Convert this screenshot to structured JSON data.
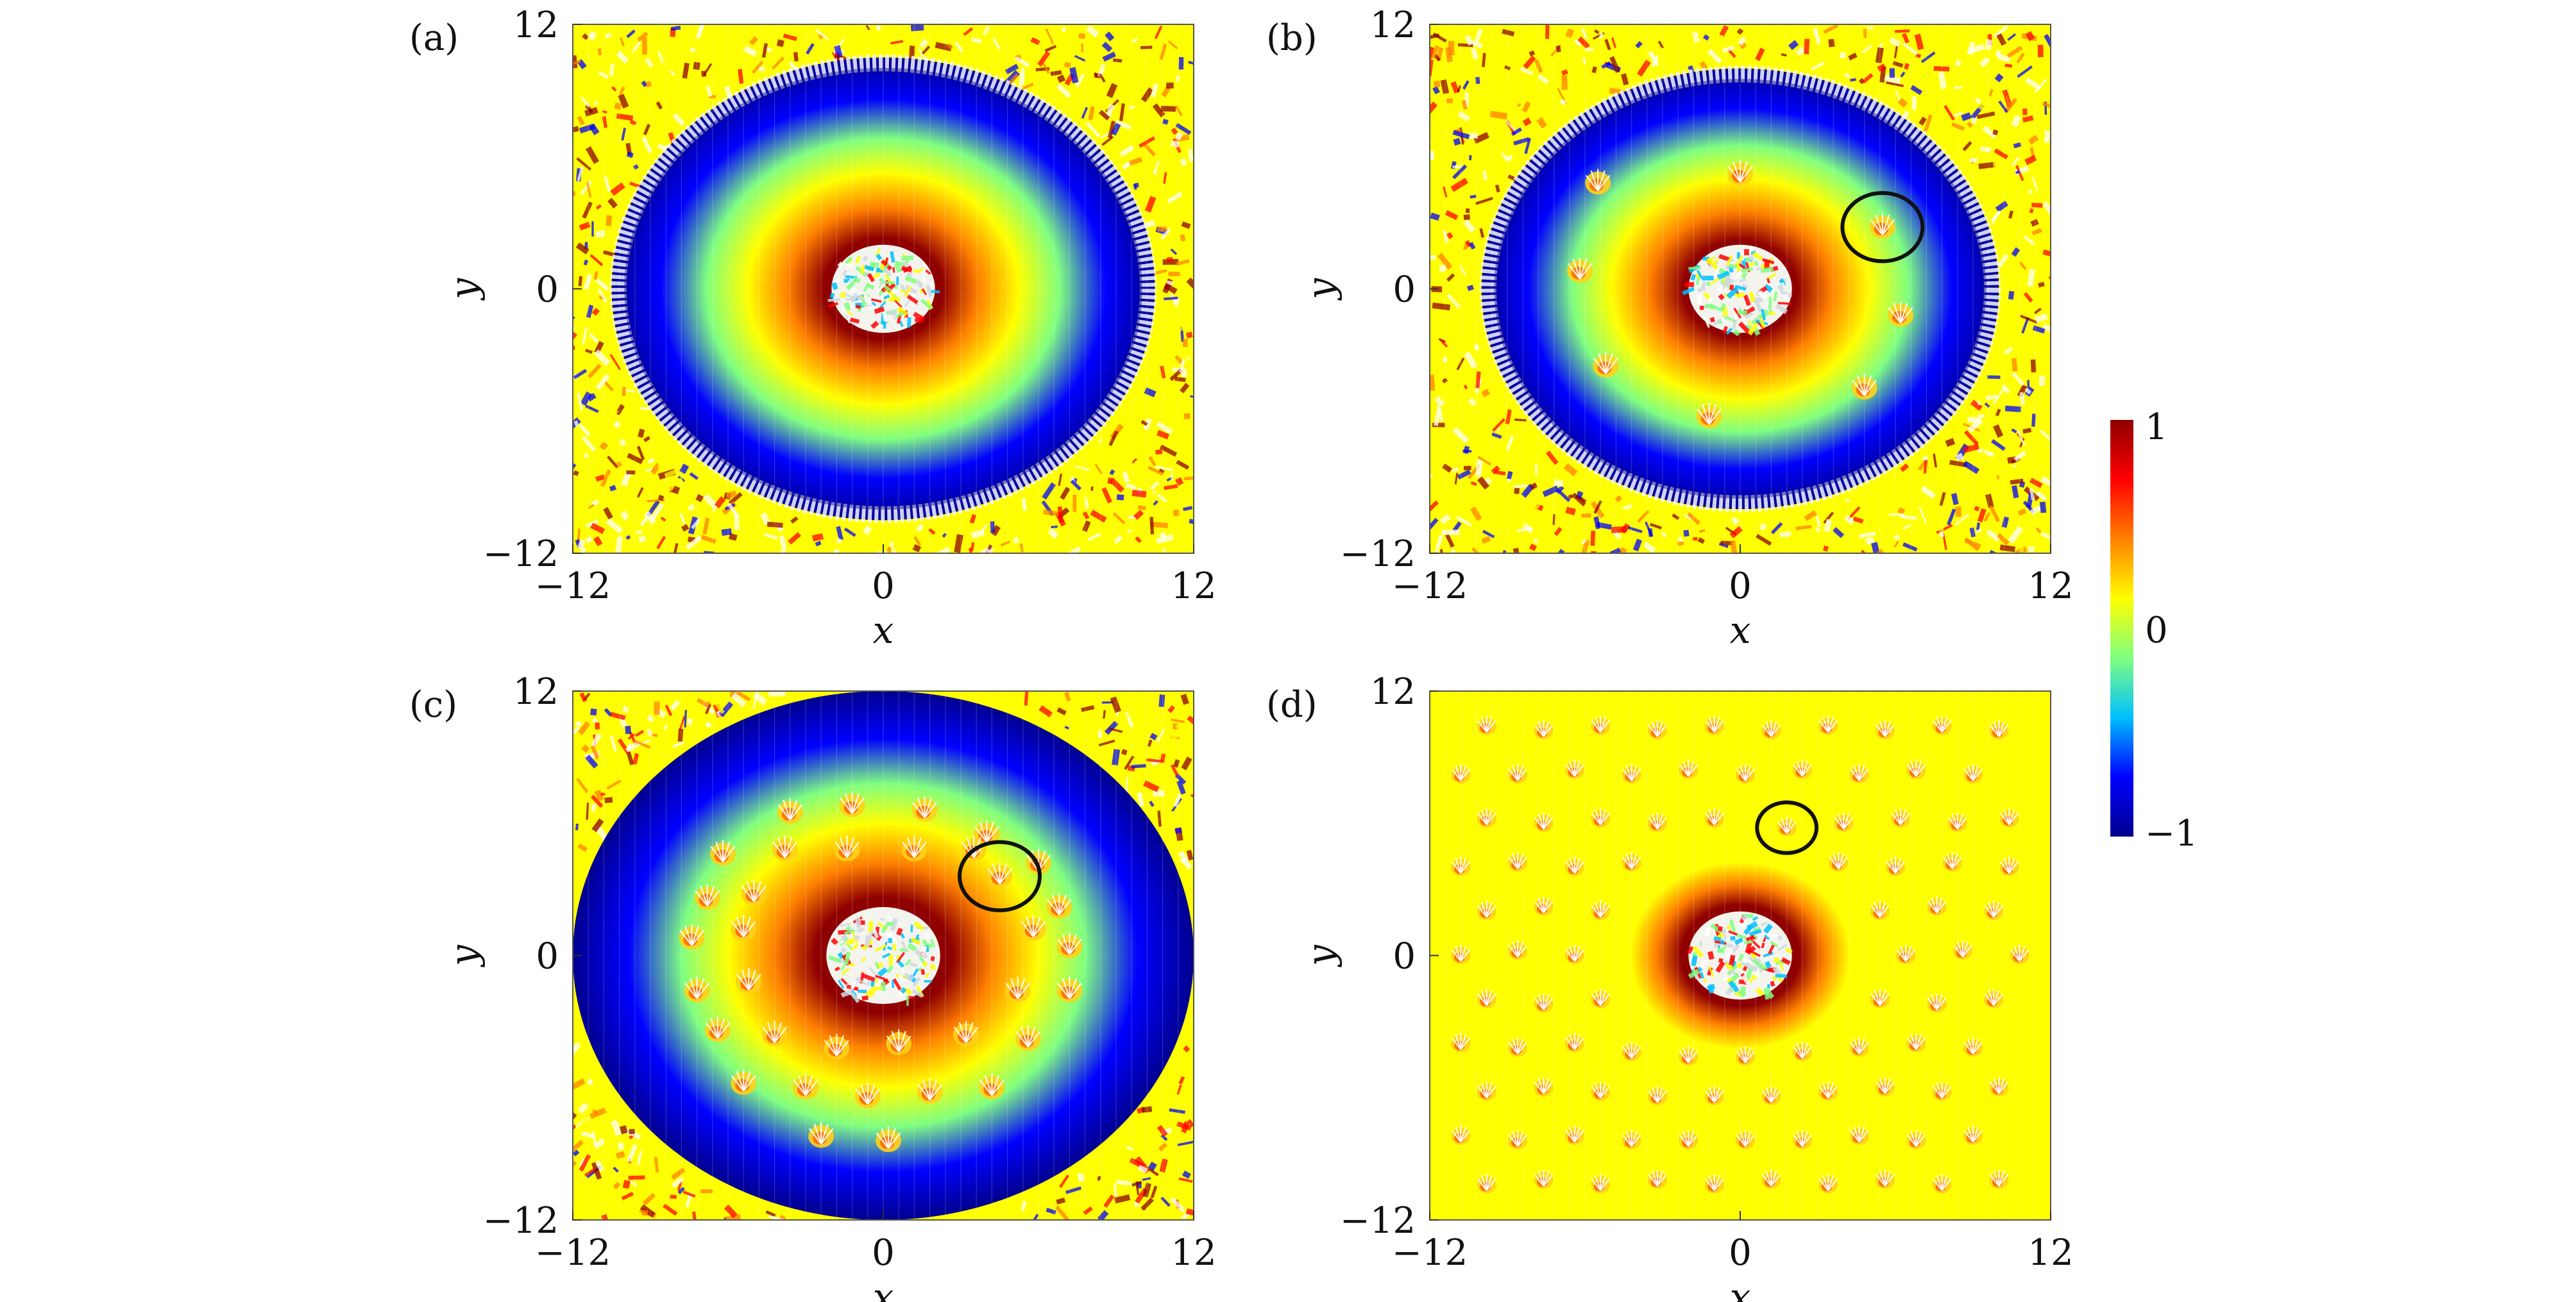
{
  "figure": {
    "colormap": [
      "#00008f",
      "#0000ff",
      "#00bfff",
      "#80ff80",
      "#ffff00",
      "#ff8000",
      "#ff0000",
      "#8f0000"
    ],
    "colorbar": {
      "min": -1,
      "max": 1,
      "tick_labels": [
        "1",
        "0",
        "−1"
      ]
    },
    "panels": [
      {
        "label": "(a)",
        "xlabel": "x",
        "ylabel": "y",
        "xlim": [
          -12,
          12
        ],
        "ylim": [
          -12,
          12
        ],
        "x_tick_labels": [
          "−12",
          "0",
          "12"
        ],
        "y_tick_labels": [
          "12",
          "0",
          "−12"
        ],
        "ring_radius": 10.5,
        "core_radius": 2.0,
        "center_value": 0.9,
        "edge_value": -1.0,
        "outside_value": 0.0,
        "circled_spot": null,
        "spots": []
      },
      {
        "label": "(b)",
        "xlabel": "x",
        "ylabel": "y",
        "xlim": [
          -12,
          12
        ],
        "ylim": [
          -12,
          12
        ],
        "x_tick_labels": [
          "−12",
          "0",
          "12"
        ],
        "y_tick_labels": [
          "12",
          "0",
          "−12"
        ],
        "ring_radius": 10.0,
        "core_radius": 2.0,
        "center_value": 0.9,
        "edge_value": -1.0,
        "outside_value": 0.0,
        "circled_spot": {
          "x": 5.5,
          "y": 2.8
        },
        "spots": [
          {
            "x": -5.5,
            "y": 4.8
          },
          {
            "x": 0,
            "y": 5.2
          },
          {
            "x": 5.5,
            "y": 2.8
          },
          {
            "x": -6.2,
            "y": 0.8
          },
          {
            "x": 6.2,
            "y": -1.2
          },
          {
            "x": -5.2,
            "y": -3.5
          },
          {
            "x": 4.8,
            "y": -4.5
          },
          {
            "x": -1.2,
            "y": -5.8
          }
        ]
      },
      {
        "label": "(c)",
        "xlabel": "x",
        "ylabel": "y",
        "xlim": [
          -12,
          12
        ],
        "ylim": [
          -12,
          12
        ],
        "x_tick_labels": [
          "−12",
          "0",
          "12"
        ],
        "y_tick_labels": [
          "12",
          "0",
          "−12"
        ],
        "ring_radius": 12.0,
        "core_radius": 2.2,
        "center_value": 0.9,
        "edge_value": -1.0,
        "outside_value": 0.0,
        "circled_spot": {
          "x": 4.5,
          "y": 3.6
        },
        "spots": [
          {
            "x": -3.6,
            "y": 6.5
          },
          {
            "x": -1.2,
            "y": 6.8
          },
          {
            "x": 1.6,
            "y": 6.6
          },
          {
            "x": 4.0,
            "y": 5.5
          },
          {
            "x": -6.2,
            "y": 4.6
          },
          {
            "x": -3.8,
            "y": 4.8
          },
          {
            "x": -1.4,
            "y": 4.8
          },
          {
            "x": 1.2,
            "y": 4.8
          },
          {
            "x": 3.5,
            "y": 4.8
          },
          {
            "x": 6.0,
            "y": 4.2
          },
          {
            "x": -6.8,
            "y": 2.6
          },
          {
            "x": -5.0,
            "y": 2.8
          },
          {
            "x": 4.5,
            "y": 3.6
          },
          {
            "x": 6.8,
            "y": 2.2
          },
          {
            "x": -7.4,
            "y": 0.8
          },
          {
            "x": -5.4,
            "y": 1.2
          },
          {
            "x": 5.8,
            "y": 1.2
          },
          {
            "x": 7.2,
            "y": 0.4
          },
          {
            "x": -7.2,
            "y": -1.6
          },
          {
            "x": -5.2,
            "y": -1.2
          },
          {
            "x": 5.2,
            "y": -1.6
          },
          {
            "x": 7.2,
            "y": -1.6
          },
          {
            "x": -6.4,
            "y": -3.4
          },
          {
            "x": -4.2,
            "y": -3.6
          },
          {
            "x": -1.8,
            "y": -4.2
          },
          {
            "x": 0.6,
            "y": -4.0
          },
          {
            "x": 3.2,
            "y": -3.6
          },
          {
            "x": 5.6,
            "y": -3.8
          },
          {
            "x": -5.4,
            "y": -5.8
          },
          {
            "x": -3.0,
            "y": -6.0
          },
          {
            "x": -0.6,
            "y": -6.4
          },
          {
            "x": 1.8,
            "y": -6.2
          },
          {
            "x": 4.2,
            "y": -6.0
          },
          {
            "x": -2.4,
            "y": -8.2
          },
          {
            "x": 0.2,
            "y": -8.4
          }
        ]
      },
      {
        "label": "(d)",
        "xlabel": "x",
        "ylabel": "y",
        "xlim": [
          -12,
          12
        ],
        "ylim": [
          -12,
          12
        ],
        "x_tick_labels": [
          "−12",
          "0",
          "12"
        ],
        "y_tick_labels": [
          "12",
          "0",
          "−12"
        ],
        "ring_radius": 0,
        "core_radius": 2.0,
        "center_value": 0.9,
        "edge_value": 0.0,
        "outside_value": 0.0,
        "circled_spot": {
          "x": 1.8,
          "y": 5.8
        },
        "spots": [
          {
            "x": -9.8,
            "y": 10.4
          },
          {
            "x": -7.6,
            "y": 10.2
          },
          {
            "x": -5.4,
            "y": 10.4
          },
          {
            "x": -3.2,
            "y": 10.2
          },
          {
            "x": -1.0,
            "y": 10.4
          },
          {
            "x": 1.2,
            "y": 10.2
          },
          {
            "x": 3.4,
            "y": 10.4
          },
          {
            "x": 5.6,
            "y": 10.2
          },
          {
            "x": 7.8,
            "y": 10.4
          },
          {
            "x": 10.0,
            "y": 10.2
          },
          {
            "x": -10.8,
            "y": 8.2
          },
          {
            "x": -8.6,
            "y": 8.2
          },
          {
            "x": -6.4,
            "y": 8.4
          },
          {
            "x": -4.2,
            "y": 8.2
          },
          {
            "x": -2.0,
            "y": 8.4
          },
          {
            "x": 0.2,
            "y": 8.2
          },
          {
            "x": 2.4,
            "y": 8.4
          },
          {
            "x": 4.6,
            "y": 8.2
          },
          {
            "x": 6.8,
            "y": 8.4
          },
          {
            "x": 9.0,
            "y": 8.2
          },
          {
            "x": -9.8,
            "y": 6.2
          },
          {
            "x": -7.6,
            "y": 6.0
          },
          {
            "x": -5.4,
            "y": 6.2
          },
          {
            "x": -3.2,
            "y": 6.0
          },
          {
            "x": -1.0,
            "y": 6.2
          },
          {
            "x": 1.8,
            "y": 5.8
          },
          {
            "x": 4.0,
            "y": 6.0
          },
          {
            "x": 6.2,
            "y": 6.2
          },
          {
            "x": 8.4,
            "y": 6.0
          },
          {
            "x": 10.4,
            "y": 6.2
          },
          {
            "x": -10.8,
            "y": 4.0
          },
          {
            "x": -8.6,
            "y": 4.2
          },
          {
            "x": -6.4,
            "y": 4.0
          },
          {
            "x": -4.2,
            "y": 4.2
          },
          {
            "x": 3.8,
            "y": 4.2
          },
          {
            "x": 6.0,
            "y": 4.0
          },
          {
            "x": 8.2,
            "y": 4.2
          },
          {
            "x": 10.4,
            "y": 4.0
          },
          {
            "x": -9.8,
            "y": 2.0
          },
          {
            "x": -7.6,
            "y": 2.2
          },
          {
            "x": -5.4,
            "y": 2.0
          },
          {
            "x": 5.4,
            "y": 2.0
          },
          {
            "x": 7.6,
            "y": 2.2
          },
          {
            "x": 9.8,
            "y": 2.0
          },
          {
            "x": -10.8,
            "y": 0.0
          },
          {
            "x": -8.6,
            "y": 0.2
          },
          {
            "x": -6.4,
            "y": 0.0
          },
          {
            "x": 6.4,
            "y": 0.0
          },
          {
            "x": 8.6,
            "y": 0.2
          },
          {
            "x": 10.8,
            "y": 0.0
          },
          {
            "x": -9.8,
            "y": -2.0
          },
          {
            "x": -7.6,
            "y": -2.2
          },
          {
            "x": -5.4,
            "y": -2.0
          },
          {
            "x": 5.4,
            "y": -2.0
          },
          {
            "x": 7.6,
            "y": -2.2
          },
          {
            "x": 9.8,
            "y": -2.0
          },
          {
            "x": -10.8,
            "y": -4.0
          },
          {
            "x": -8.6,
            "y": -4.2
          },
          {
            "x": -6.4,
            "y": -4.0
          },
          {
            "x": -4.2,
            "y": -4.4
          },
          {
            "x": -2.0,
            "y": -4.6
          },
          {
            "x": 0.2,
            "y": -4.6
          },
          {
            "x": 2.4,
            "y": -4.4
          },
          {
            "x": 4.6,
            "y": -4.2
          },
          {
            "x": 6.8,
            "y": -4.0
          },
          {
            "x": 9.0,
            "y": -4.2
          },
          {
            "x": -9.8,
            "y": -6.2
          },
          {
            "x": -7.6,
            "y": -6.0
          },
          {
            "x": -5.4,
            "y": -6.2
          },
          {
            "x": -3.2,
            "y": -6.4
          },
          {
            "x": -1.0,
            "y": -6.4
          },
          {
            "x": 1.2,
            "y": -6.4
          },
          {
            "x": 3.4,
            "y": -6.2
          },
          {
            "x": 5.6,
            "y": -6.0
          },
          {
            "x": 7.8,
            "y": -6.2
          },
          {
            "x": 10.0,
            "y": -6.0
          },
          {
            "x": -10.8,
            "y": -8.2
          },
          {
            "x": -8.6,
            "y": -8.4
          },
          {
            "x": -6.4,
            "y": -8.2
          },
          {
            "x": -4.2,
            "y": -8.4
          },
          {
            "x": -2.0,
            "y": -8.4
          },
          {
            "x": 0.2,
            "y": -8.4
          },
          {
            "x": 2.4,
            "y": -8.4
          },
          {
            "x": 4.6,
            "y": -8.2
          },
          {
            "x": 6.8,
            "y": -8.4
          },
          {
            "x": 9.0,
            "y": -8.2
          },
          {
            "x": -9.8,
            "y": -10.4
          },
          {
            "x": -7.6,
            "y": -10.2
          },
          {
            "x": -5.4,
            "y": -10.4
          },
          {
            "x": -3.2,
            "y": -10.2
          },
          {
            "x": -1.0,
            "y": -10.4
          },
          {
            "x": 1.2,
            "y": -10.2
          },
          {
            "x": 3.4,
            "y": -10.4
          },
          {
            "x": 5.6,
            "y": -10.2
          },
          {
            "x": 7.8,
            "y": -10.4
          },
          {
            "x": 10.0,
            "y": -10.2
          }
        ]
      }
    ]
  },
  "chart_data": [
    {
      "type": "heatmap",
      "title": "",
      "xlabel": "x",
      "ylabel": "y",
      "xlim": [
        -12,
        12
      ],
      "ylim": [
        -12,
        12
      ],
      "color_range": [
        -1,
        1
      ],
      "vortex_count": 0
    },
    {
      "type": "heatmap",
      "title": "",
      "xlabel": "x",
      "ylabel": "y",
      "xlim": [
        -12,
        12
      ],
      "ylim": [
        -12,
        12
      ],
      "color_range": [
        -1,
        1
      ],
      "vortex_count": 8
    },
    {
      "type": "heatmap",
      "title": "",
      "xlabel": "x",
      "ylabel": "y",
      "xlim": [
        -12,
        12
      ],
      "ylim": [
        -12,
        12
      ],
      "color_range": [
        -1,
        1
      ],
      "vortex_count": 35
    },
    {
      "type": "heatmap",
      "title": "",
      "xlabel": "x",
      "ylabel": "y",
      "xlim": [
        -12,
        12
      ],
      "ylim": [
        -12,
        12
      ],
      "color_range": [
        -1,
        1
      ],
      "vortex_count": 96
    }
  ]
}
